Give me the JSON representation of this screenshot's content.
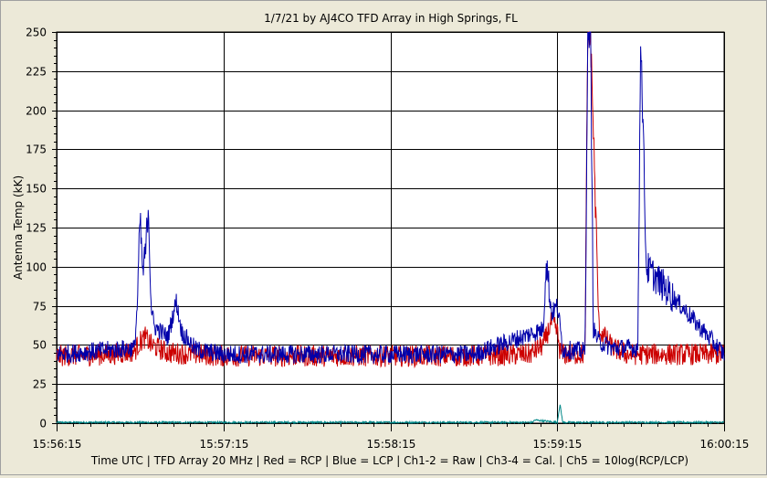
{
  "chart_data": {
    "type": "line",
    "title": "1/7/21  by  AJ4CO TFD Array  in  High Springs, FL",
    "ylabel": "Antenna Temp (kK)",
    "xlabel": "Time UTC | TFD Array 20 MHz | Red = RCP | Blue = LCP | Ch1-2 = Raw | Ch3-4 = Cal. | Ch5 = 10log(RCP/LCP)",
    "ylim": [
      0,
      250
    ],
    "y_ticks": [
      "0",
      "25",
      "50",
      "75",
      "100",
      "125",
      "150",
      "175",
      "200",
      "225",
      "250"
    ],
    "x_ticks": [
      "15:56:15",
      "15:57:15",
      "15:58:15",
      "15:59:15",
      "16:00:15"
    ],
    "x_range_seconds": [
      0,
      240
    ],
    "grid": true,
    "colors": {
      "rcp": "#cc0000",
      "lcp": "#0000aa",
      "ratio": "#008888",
      "grid": "#000000",
      "plot_bg": "#ffffff"
    },
    "series": [
      {
        "name": "RCP",
        "baseline": 43,
        "x": [
          0,
          20,
          28,
          30,
          32,
          34,
          40,
          50,
          60,
          90,
          120,
          150,
          170,
          175,
          178,
          180,
          181,
          182,
          190,
          191,
          192,
          195,
          200,
          205,
          210,
          240
        ],
        "y": [
          43,
          44,
          46,
          52,
          55,
          50,
          45,
          44,
          43,
          43,
          43,
          43,
          44,
          50,
          65,
          58,
          46,
          44,
          44,
          250,
          250,
          60,
          48,
          44,
          44,
          44
        ]
      },
      {
        "name": "LCP",
        "baseline": 44,
        "x": [
          0,
          28,
          29,
          30,
          31,
          32,
          33,
          34,
          35,
          40,
          43,
          45,
          50,
          60,
          90,
          120,
          150,
          175,
          176,
          178,
          180,
          181,
          182,
          190,
          191,
          192,
          193,
          195,
          200,
          209,
          210,
          211,
          212,
          225,
          240
        ],
        "y": [
          44,
          48,
          75,
          130,
          95,
          110,
          140,
          75,
          62,
          55,
          78,
          58,
          47,
          44,
          44,
          44,
          44,
          60,
          105,
          70,
          75,
          62,
          47,
          46,
          250,
          250,
          60,
          52,
          48,
          48,
          250,
          180,
          100,
          74,
          44
        ]
      },
      {
        "name": "Ratio",
        "baseline": 0.5,
        "x": [
          0,
          171,
          172,
          180,
          181,
          182,
          240
        ],
        "y": [
          0.5,
          0.5,
          2,
          0.5,
          12,
          0.5,
          0.5
        ]
      }
    ]
  }
}
